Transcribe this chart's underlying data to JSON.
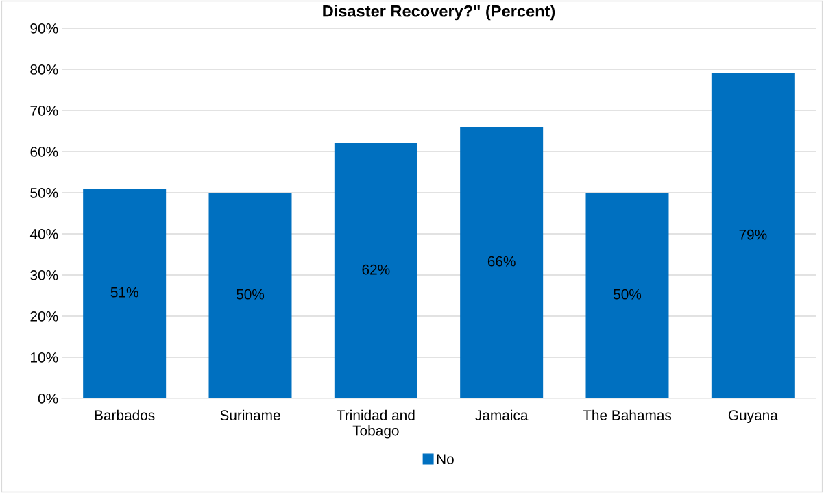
{
  "chart_data": {
    "type": "bar",
    "title": "Disaster Recovery?\" (Percent)",
    "categories": [
      "Barbados",
      "Suriname",
      "Trinidad and\nTobago",
      "Jamaica",
      "The Bahamas",
      "Guyana"
    ],
    "series": [
      {
        "name": "No",
        "color": "#0070c0",
        "values": [
          51,
          50,
          62,
          66,
          50,
          79
        ]
      }
    ],
    "value_labels": [
      "51%",
      "50%",
      "62%",
      "66%",
      "50%",
      "79%"
    ],
    "ylim": [
      0,
      90
    ],
    "yticks": [
      {
        "value": 0,
        "label": "0%"
      },
      {
        "value": 10,
        "label": "10%"
      },
      {
        "value": 20,
        "label": "20%"
      },
      {
        "value": 30,
        "label": "30%"
      },
      {
        "value": 40,
        "label": "40%"
      },
      {
        "value": 50,
        "label": "50%"
      },
      {
        "value": 60,
        "label": "60%"
      },
      {
        "value": 70,
        "label": "70%"
      },
      {
        "value": 80,
        "label": "80%"
      },
      {
        "value": 90,
        "label": "90%"
      }
    ],
    "grid": "y",
    "legend": "bottom"
  }
}
